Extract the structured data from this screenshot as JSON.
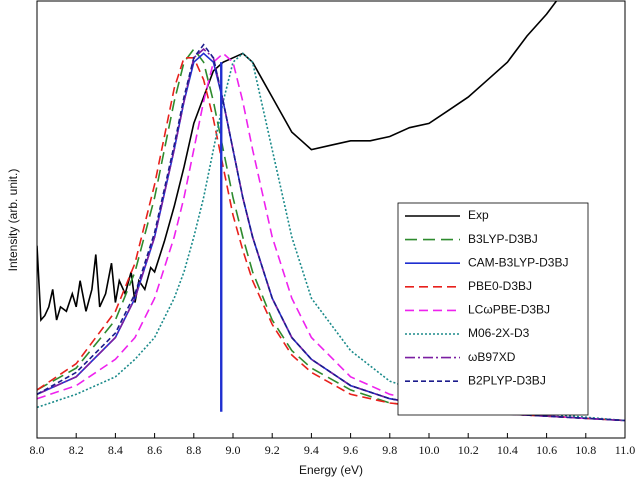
{
  "chart_data": {
    "type": "line",
    "x_label": "Energy (eV)",
    "y_label": "Intensity (arb. unit.)",
    "xlim": [
      8.0,
      11.0
    ],
    "ylim": [
      0,
      1
    ],
    "xticks": [
      {
        "value": 8.0,
        "label": "8.0"
      },
      8.2,
      8.4,
      8.6,
      8.8,
      {
        "value": 9.0,
        "label": "9.0"
      },
      9.2,
      9.4,
      9.6,
      9.8,
      {
        "value": 10.0,
        "label": "10.0"
      },
      10.2,
      10.4,
      10.6,
      10.8,
      {
        "value": 11.0,
        "label": "11.0"
      }
    ],
    "legend": "lower right",
    "x": [
      8.0,
      8.2,
      8.4,
      8.5,
      8.6,
      8.7,
      8.75,
      8.8,
      8.85,
      8.9,
      8.95,
      9.0,
      9.05,
      9.1,
      9.2,
      9.3,
      9.4,
      9.6,
      9.8,
      10.2,
      11.0
    ],
    "series": [
      {
        "name": "Exp",
        "color": "#000000",
        "dash": "none",
        "x": [
          8.0,
          8.02,
          8.04,
          8.06,
          8.08,
          8.1,
          8.12,
          8.15,
          8.18,
          8.2,
          8.22,
          8.25,
          8.28,
          8.3,
          8.32,
          8.35,
          8.38,
          8.4,
          8.42,
          8.45,
          8.48,
          8.5,
          8.52,
          8.55,
          8.58,
          8.6,
          8.65,
          8.7,
          8.75,
          8.8,
          8.85,
          8.9,
          8.95,
          9.0,
          9.05,
          9.1,
          9.15,
          9.2,
          9.25,
          9.3,
          9.35,
          9.4,
          9.5,
          9.6,
          9.7,
          9.8,
          9.9,
          10.0,
          10.1,
          10.2,
          10.3,
          10.4,
          10.5,
          10.6,
          10.65
        ],
        "values": [
          0.44,
          0.27,
          0.28,
          0.3,
          0.34,
          0.27,
          0.3,
          0.29,
          0.33,
          0.3,
          0.36,
          0.29,
          0.34,
          0.42,
          0.3,
          0.33,
          0.4,
          0.31,
          0.36,
          0.33,
          0.38,
          0.31,
          0.36,
          0.34,
          0.39,
          0.38,
          0.45,
          0.53,
          0.62,
          0.72,
          0.78,
          0.84,
          0.86,
          0.87,
          0.88,
          0.86,
          0.82,
          0.78,
          0.74,
          0.7,
          0.68,
          0.66,
          0.67,
          0.68,
          0.68,
          0.69,
          0.71,
          0.72,
          0.75,
          0.78,
          0.82,
          0.86,
          0.92,
          0.97,
          1.0
        ]
      },
      {
        "name": "B3LYP-D3BJ",
        "color": "#2e8b2e",
        "dash": "12,6",
        "values": [
          0.11,
          0.16,
          0.27,
          0.38,
          0.55,
          0.77,
          0.86,
          0.89,
          0.86,
          0.77,
          0.66,
          0.55,
          0.46,
          0.38,
          0.27,
          0.2,
          0.16,
          0.11,
          0.08,
          0.06,
          0.04
        ]
      },
      {
        "name": "CAM-B3LYP-D3BJ",
        "color": "#1f2fd0",
        "dash": "none",
        "values": [
          0.1,
          0.14,
          0.23,
          0.32,
          0.46,
          0.66,
          0.77,
          0.86,
          0.88,
          0.86,
          0.77,
          0.66,
          0.55,
          0.46,
          0.32,
          0.23,
          0.18,
          0.12,
          0.09,
          0.06,
          0.04
        ]
      },
      {
        "name": "PBE0-D3BJ",
        "color": "#e8201c",
        "dash": "9,5",
        "values": [
          0.11,
          0.17,
          0.29,
          0.4,
          0.58,
          0.8,
          0.87,
          0.87,
          0.82,
          0.73,
          0.62,
          0.51,
          0.43,
          0.36,
          0.26,
          0.19,
          0.15,
          0.1,
          0.08,
          0.06,
          0.04
        ]
      },
      {
        "name": "LCωPBE-D3BJ",
        "color": "#ee22ee",
        "dash": "9,5",
        "values": [
          0.09,
          0.12,
          0.18,
          0.23,
          0.32,
          0.46,
          0.55,
          0.66,
          0.77,
          0.86,
          0.88,
          0.86,
          0.77,
          0.66,
          0.46,
          0.32,
          0.23,
          0.14,
          0.1,
          0.06,
          0.04
        ]
      },
      {
        "name": "M06-2X-D3",
        "color": "#1a8a8a",
        "dash": "2,2",
        "values": [
          0.07,
          0.1,
          0.14,
          0.18,
          0.23,
          0.32,
          0.38,
          0.46,
          0.55,
          0.66,
          0.77,
          0.86,
          0.88,
          0.86,
          0.66,
          0.46,
          0.32,
          0.2,
          0.13,
          0.07,
          0.04
        ]
      },
      {
        "name": "ωB97XD",
        "color": "#7b1fa2",
        "dash": "10,3,2,3",
        "values": [
          0.1,
          0.14,
          0.23,
          0.32,
          0.46,
          0.66,
          0.77,
          0.87,
          0.89,
          0.87,
          0.77,
          0.66,
          0.55,
          0.46,
          0.32,
          0.23,
          0.18,
          0.12,
          0.09,
          0.06,
          0.04
        ]
      },
      {
        "name": "B2PLYP-D3BJ",
        "color": "#1c1c8c",
        "dash": "5,3",
        "values": [
          0.1,
          0.15,
          0.24,
          0.33,
          0.47,
          0.67,
          0.78,
          0.87,
          0.9,
          0.87,
          0.77,
          0.66,
          0.55,
          0.46,
          0.32,
          0.23,
          0.18,
          0.12,
          0.09,
          0.06,
          0.04
        ]
      }
    ],
    "stick": {
      "x": 8.94,
      "values": [
        0.06,
        0.86
      ],
      "color": "#1f2fd0"
    }
  }
}
